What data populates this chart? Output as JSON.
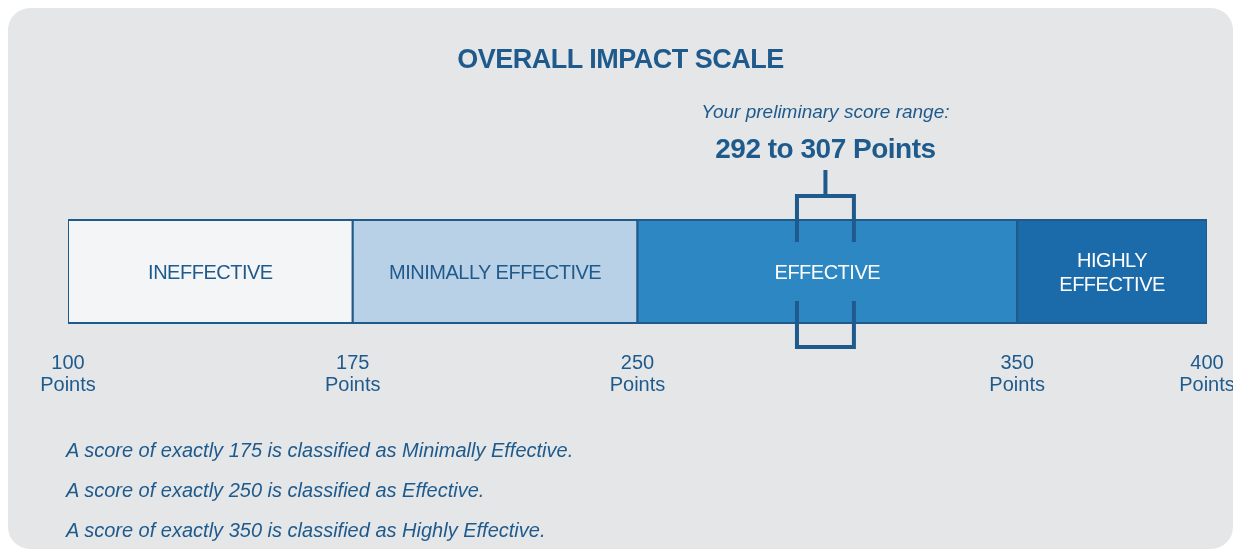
{
  "chart_data": {
    "type": "bar",
    "title": "OVERALL IMPACT SCALE",
    "orientation": "horizontal",
    "categories": [
      null
    ],
    "series": [
      {
        "name": "INEFFECTIVE",
        "color": "#f3f5f7",
        "base": [
          100
        ],
        "values": [
          75
        ]
      },
      {
        "name": "MINIMALLY EFFECTIVE",
        "color": "#b9d1e7",
        "base": [
          175
        ],
        "values": [
          75
        ]
      },
      {
        "name": "EFFECTIVE",
        "color": "#2d87c2",
        "base": [
          250
        ],
        "values": [
          100
        ]
      },
      {
        "name": "HIGHLY EFFECTIVE",
        "color": "#1b6aa9",
        "base": [
          350
        ],
        "values": [
          50
        ]
      }
    ],
    "xlim": [
      100,
      400
    ],
    "xticks": [
      {
        "value": 100,
        "label": "100 Points"
      },
      {
        "value": 175,
        "label": "175 Points"
      },
      {
        "value": 250,
        "label": "250 Points"
      },
      {
        "value": 350,
        "label": "350 Points"
      },
      {
        "value": 400,
        "label": "400 Points"
      }
    ],
    "ref_lines": [
      {
        "axis": "x",
        "value": 292,
        "color": "#1f5a8c"
      },
      {
        "axis": "x",
        "value": 307,
        "color": "#1f5a8c"
      }
    ],
    "annotations": [
      "Your preliminary score range:",
      "292 to 307 Points",
      "A score of exactly 175 is classified as Minimally Effective.",
      "A score of exactly 250 is classified as Effective.",
      "A score of exactly 350 is classified as Highly Effective."
    ],
    "grid": false,
    "legend": false
  }
}
